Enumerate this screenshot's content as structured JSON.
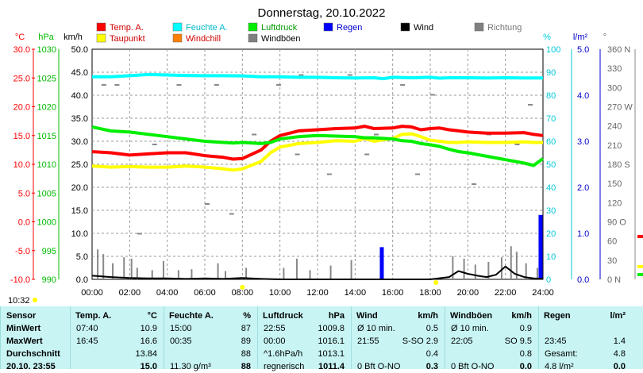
{
  "title": "Donnerstag, 20.10.2022",
  "time_marker": "10:32",
  "colors": {
    "temp": "#ff0000",
    "taupunkt": "#ffff00",
    "feuchte": "#00ffff",
    "windchill": "#ff8000",
    "luftdruck": "#00ee00",
    "windboeen": "#808080",
    "regen": "#0000ff",
    "wind": "#000000",
    "richtung": "#808080"
  },
  "legend": [
    {
      "label": "Temp. A.",
      "color": "#ff0000"
    },
    {
      "label": "Taupunkt",
      "color": "#ffff00"
    },
    {
      "label": "Feuchte A.",
      "color": "#00ffff"
    },
    {
      "label": "Windchill",
      "color": "#ff8000"
    },
    {
      "label": "Luftdruck",
      "color": "#00ee00"
    },
    {
      "label": "Windböen",
      "color": "#808080"
    },
    {
      "label": "Regen",
      "color": "#0000ff"
    },
    {
      "label": "Wind",
      "color": "#000000"
    },
    {
      "label": "Richtung",
      "color": "#808080"
    }
  ],
  "chart_data": {
    "type": "line",
    "title": "Donnerstag, 20.10.2022",
    "x_ticks": [
      "00:00",
      "02:00",
      "04:00",
      "06:00",
      "08:00",
      "10:00",
      "12:00",
      "14:00",
      "16:00",
      "18:00",
      "20:00",
      "22:00",
      "24:00"
    ],
    "axes": {
      "temp": {
        "unit": "°C",
        "ticks": [
          "30.0",
          "25.0",
          "20.0",
          "15.0",
          "10.0",
          "5.0",
          "0.0",
          "-5.0",
          "-10.0"
        ],
        "range": [
          -10,
          30
        ]
      },
      "pressure": {
        "unit": "hPa",
        "ticks": [
          "1030",
          "1025",
          "1020",
          "1015",
          "1010",
          "1005",
          "1000",
          "995",
          "990"
        ],
        "range": [
          990,
          1030
        ]
      },
      "wind": {
        "unit": "km/h",
        "ticks": [
          "50.0",
          "45.0",
          "40.0",
          "35.0",
          "30.0",
          "25.0",
          "20.0",
          "15.0",
          "10.0",
          "5.0",
          "0.0"
        ],
        "range": [
          0,
          50
        ]
      },
      "humidity": {
        "unit": "%",
        "ticks": [
          "100",
          "90",
          "80",
          "70",
          "60",
          "50",
          "40",
          "30",
          "20",
          "10",
          "0"
        ],
        "range": [
          0,
          100
        ]
      },
      "rain": {
        "unit": "l/m²",
        "ticks": [
          "5.0",
          "4.0",
          "3.0",
          "2.0",
          "1.0",
          "0.0"
        ],
        "range": [
          0,
          5
        ]
      },
      "direction": {
        "unit": "°",
        "ticks": [
          "360 N",
          "330",
          "300",
          "270 W",
          "240",
          "210",
          "180 S",
          "150",
          "120",
          "90 O",
          "60",
          "30",
          "0 N"
        ],
        "range": [
          0,
          360
        ]
      }
    },
    "series": [
      {
        "name": "Temp. A.",
        "axis": "temp",
        "x": [
          0,
          1,
          2,
          3,
          4,
          5,
          6,
          7,
          7.5,
          8,
          9,
          9.5,
          10,
          11,
          12,
          13,
          14,
          14.5,
          15,
          16,
          16.5,
          17,
          17.5,
          18,
          18.5,
          19,
          19.5,
          20,
          21,
          22,
          23,
          23.5,
          24
        ],
        "y": [
          12.2,
          12.0,
          11.6,
          11.8,
          12.0,
          12.0,
          11.5,
          11.2,
          10.9,
          11.0,
          12.5,
          14.0,
          15.0,
          15.8,
          16.0,
          16.2,
          16.3,
          16.6,
          16.2,
          16.3,
          16.6,
          16.5,
          16.0,
          16.2,
          16.3,
          16.0,
          15.8,
          15.6,
          15.4,
          15.4,
          15.5,
          15.2,
          15.0
        ]
      },
      {
        "name": "Taupunkt",
        "axis": "temp",
        "x": [
          0,
          1,
          2,
          3,
          4,
          5,
          6,
          7,
          7.5,
          8,
          9,
          9.5,
          10,
          11,
          12,
          13,
          14,
          14.5,
          15,
          16,
          16.5,
          17,
          17.5,
          18,
          18.5,
          19,
          19.5,
          20,
          21,
          22,
          23,
          23.5,
          24
        ],
        "y": [
          9.7,
          9.5,
          9.6,
          9.5,
          9.5,
          9.7,
          9.5,
          9.2,
          9.0,
          9.2,
          10.5,
          12.0,
          13.0,
          13.6,
          13.8,
          14.1,
          14.0,
          14.5,
          14.0,
          14.5,
          15.2,
          15.3,
          14.8,
          14.2,
          14.0,
          13.8,
          13.8,
          13.9,
          13.8,
          13.8,
          13.9,
          13.8,
          13.8
        ]
      },
      {
        "name": "Luftdruck",
        "axis": "pressure",
        "x": [
          0,
          1,
          2,
          3,
          4,
          5,
          6,
          7,
          7.5,
          8,
          9,
          9.5,
          10,
          11,
          12,
          13,
          14,
          14.5,
          15,
          16,
          16.5,
          17,
          17.5,
          18,
          18.5,
          19,
          19.5,
          20,
          21,
          22,
          23,
          23.5,
          24
        ],
        "y": [
          1016.5,
          1015.8,
          1015.6,
          1015.2,
          1014.8,
          1014.4,
          1014.0,
          1013.8,
          1013.7,
          1013.8,
          1013.6,
          1013.8,
          1014.4,
          1014.8,
          1015.0,
          1014.9,
          1014.8,
          1014.6,
          1014.6,
          1014.4,
          1014.1,
          1014.0,
          1013.6,
          1013.4,
          1013.1,
          1012.6,
          1012.2,
          1012.0,
          1011.4,
          1010.8,
          1010.2,
          1009.8,
          1011.0
        ]
      },
      {
        "name": "Feuchte A.",
        "axis": "humidity",
        "x": [
          0,
          1,
          2,
          3,
          4,
          5,
          6,
          7,
          8,
          9,
          10,
          11,
          12,
          13,
          14,
          15,
          15.5,
          16,
          17,
          18,
          18.5,
          19,
          20,
          21,
          22,
          23,
          24
        ],
        "y": [
          88,
          88,
          88.5,
          89,
          88.8,
          88.6,
          88.5,
          88.5,
          88.4,
          88,
          88,
          87.8,
          87.8,
          87.6,
          87.5,
          87.6,
          87.2,
          87.8,
          87.6,
          87.8,
          87.4,
          87.6,
          87.6,
          87.5,
          87.6,
          87.5,
          87.5
        ]
      },
      {
        "name": "Wind",
        "axis": "wind",
        "x": [
          0,
          1,
          2,
          3,
          4,
          5,
          6,
          7,
          8,
          9,
          10,
          11,
          12,
          13,
          14,
          15,
          16,
          17,
          18,
          19,
          19.5,
          20,
          20.5,
          21,
          21.5,
          22,
          22.5,
          23,
          23.5,
          24
        ],
        "y": [
          0.8,
          0.5,
          0.3,
          0.2,
          0.2,
          0.1,
          0.2,
          0.1,
          0.3,
          0.1,
          0,
          0,
          0,
          0,
          0,
          0,
          0,
          0,
          0,
          0.5,
          1.8,
          1.2,
          0.8,
          0.5,
          1.0,
          2.8,
          1.2,
          0.5,
          0.2,
          0.1
        ]
      }
    ],
    "windboeen_spikes": {
      "x": [
        0.3,
        0.6,
        1.1,
        1.7,
        2.1,
        2.4,
        3.2,
        3.8,
        4.6,
        5.3,
        6.7,
        7.1,
        8.2,
        10.2,
        10.9,
        11.6,
        12.7,
        13.8,
        19.2,
        19.8,
        20.4,
        21.1,
        21.8,
        22.3,
        22.6,
        23.1,
        23.7
      ],
      "y": [
        6.5,
        5.5,
        3.5,
        4.8,
        4.5,
        2.5,
        2.0,
        4.0,
        2.0,
        2.2,
        3.5,
        1.8,
        2.5,
        2.5,
        4.5,
        2.0,
        3.0,
        4.2,
        5.0,
        4.5,
        3.2,
        3.8,
        4.8,
        7.2,
        6.0,
        3.5,
        2.5
      ]
    },
    "regen_bars": {
      "x": [
        15.4,
        23.85
      ],
      "y": [
        0.7,
        1.4
      ]
    }
  },
  "table": {
    "headers": {
      "sensor": "Sensor",
      "temp": {
        "label": "Temp. A.",
        "unit": "°C"
      },
      "feuchte": {
        "label": "Feuchte A.",
        "unit": "%"
      },
      "luftdruck": {
        "label": "Luftdruck",
        "unit": "hPa"
      },
      "wind": {
        "label": "Wind",
        "unit": "km/h"
      },
      "windboeen": {
        "label": "Windböen",
        "unit": "km/h"
      },
      "regen": {
        "label": "Regen",
        "unit": "l/m²"
      }
    },
    "rows": [
      {
        "label": "MinWert",
        "temp": [
          "07:40",
          "10.9"
        ],
        "feuchte": [
          "15:00",
          "87"
        ],
        "luftdruck": [
          "22:55",
          "1009.8"
        ],
        "wind": [
          "Ø 10 min.",
          "0.5"
        ],
        "windboeen": [
          "Ø 10 min.",
          "0.9"
        ],
        "regen": [
          "",
          ""
        ]
      },
      {
        "label": "MaxWert",
        "temp": [
          "16:45",
          "16.6"
        ],
        "feuchte": [
          "00:35",
          "89"
        ],
        "luftdruck": [
          "00:00",
          "1016.1"
        ],
        "wind": [
          "21:55",
          "S-SO 2.9"
        ],
        "windboeen": [
          "22:05",
          "SO 9.5"
        ],
        "regen": [
          "23:45",
          "1.4"
        ]
      },
      {
        "label": "Durchschnitt",
        "temp": [
          "",
          "13.84"
        ],
        "feuchte": [
          "",
          "88"
        ],
        "luftdruck": [
          "^1.6hPa/h",
          "1013.1"
        ],
        "wind": [
          "",
          "0.4"
        ],
        "windboeen": [
          "",
          "0.8"
        ],
        "regen": [
          "Gesamt:",
          "4.8"
        ]
      },
      {
        "label": "20.10. 23:55",
        "temp": [
          "",
          "15.0"
        ],
        "feuchte": [
          "11.30 g/m³",
          "88"
        ],
        "luftdruck": [
          "regnerisch",
          "1011.4"
        ],
        "wind": [
          "0 Bft O-NO",
          "0.3"
        ],
        "windboeen": [
          "0 Bft O-NO",
          "0.0"
        ],
        "regen": [
          "4.8 l/m²",
          "0.0"
        ]
      }
    ]
  }
}
